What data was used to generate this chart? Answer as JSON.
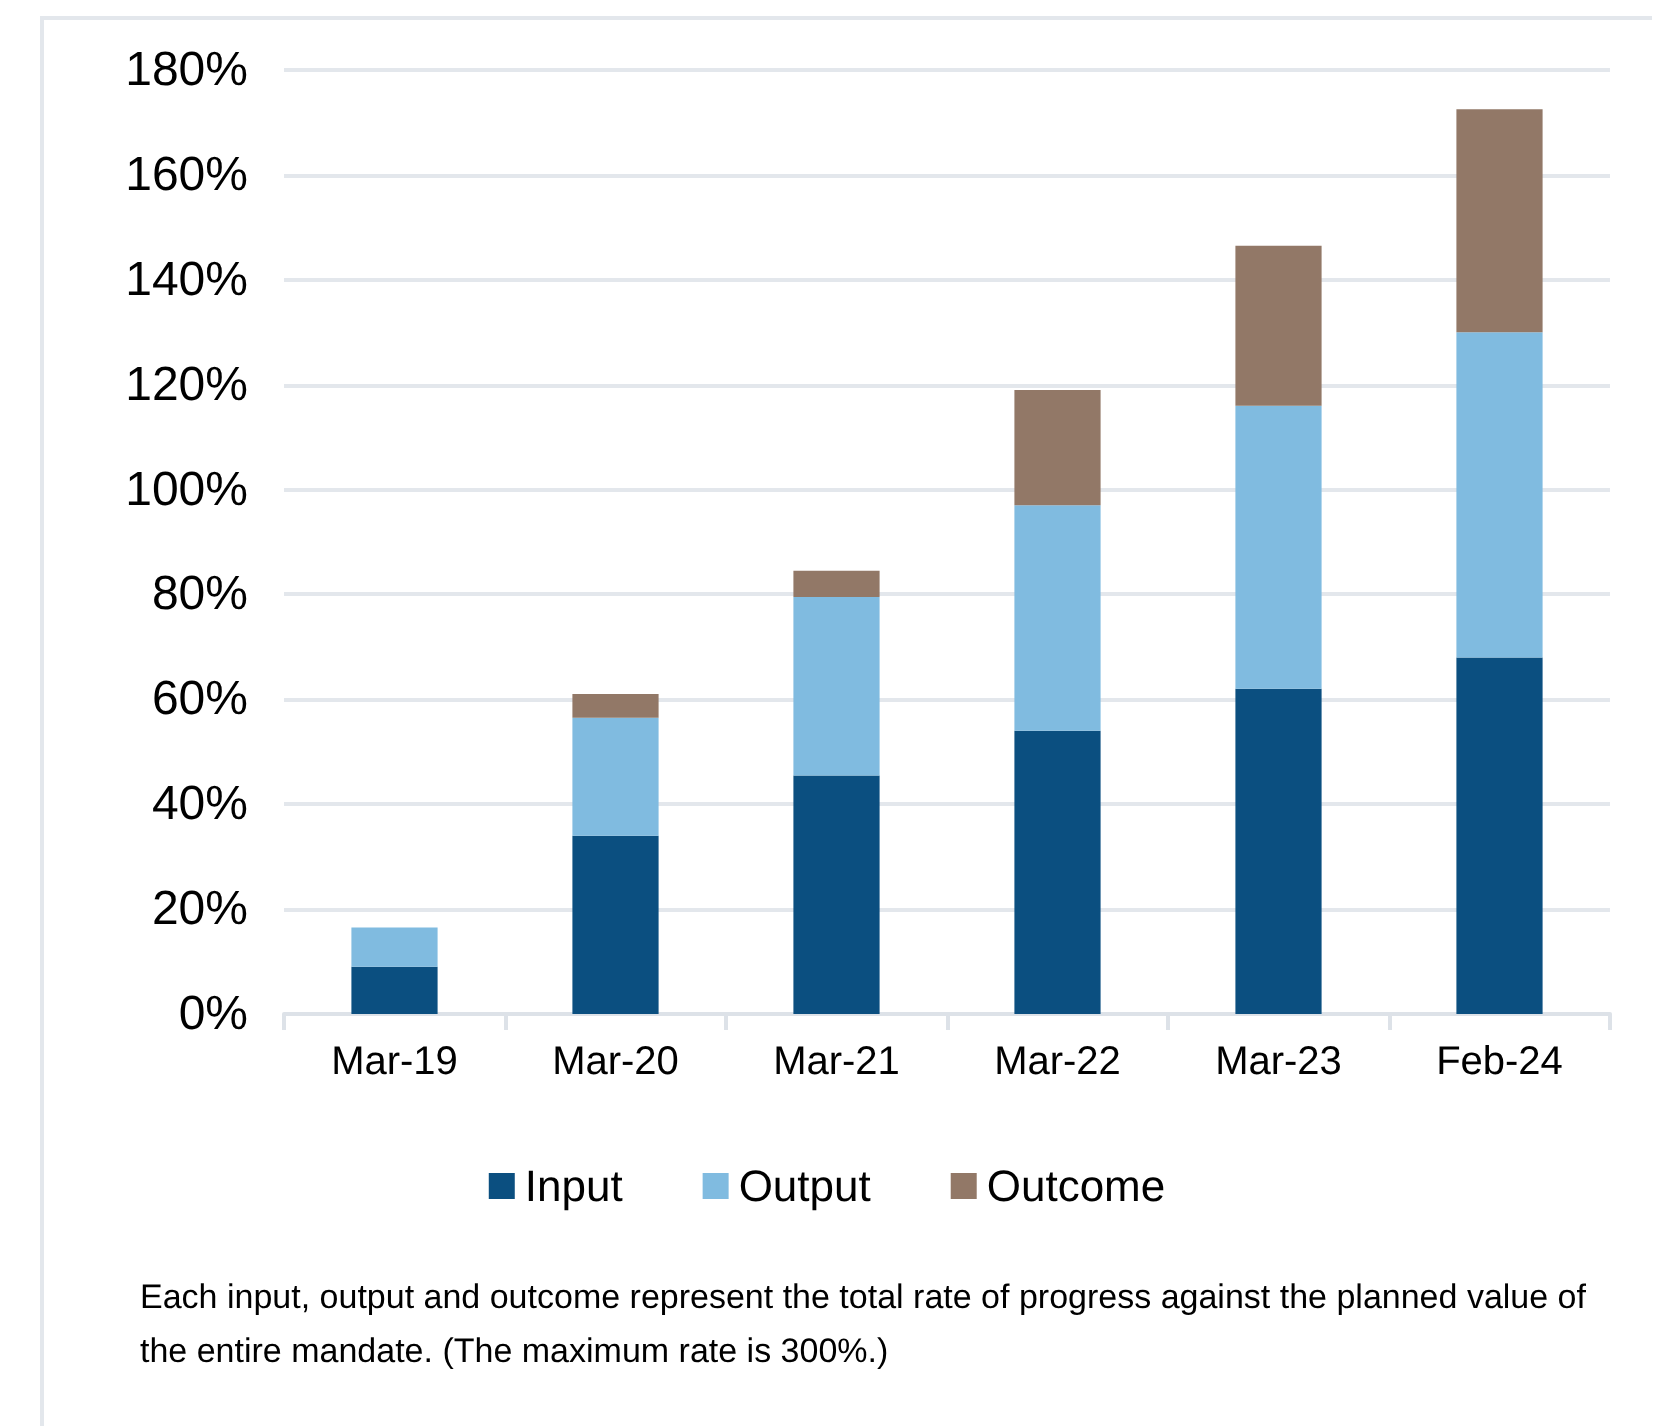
{
  "chart_data": {
    "type": "bar",
    "stacked": true,
    "categories": [
      "Mar-19",
      "Mar-20",
      "Mar-21",
      "Mar-22",
      "Mar-23",
      "Feb-24"
    ],
    "series": [
      {
        "name": "Input",
        "color": "#0b4f80",
        "values": [
          9,
          34,
          45.5,
          54,
          62,
          68
        ]
      },
      {
        "name": "Output",
        "color": "#80bbe0",
        "values": [
          7.5,
          22.5,
          34,
          43,
          54,
          62
        ]
      },
      {
        "name": "Outcome",
        "color": "#927867",
        "values": [
          0,
          4.5,
          5,
          22,
          30.5,
          42.5
        ]
      }
    ],
    "ylim": [
      0,
      180
    ],
    "yticks": [
      {
        "value": 0,
        "label": "0%"
      },
      {
        "value": 20,
        "label": "20%"
      },
      {
        "value": 40,
        "label": "40%"
      },
      {
        "value": 60,
        "label": "60%"
      },
      {
        "value": 80,
        "label": "80%"
      },
      {
        "value": 100,
        "label": "100%"
      },
      {
        "value": 120,
        "label": "120%"
      },
      {
        "value": 140,
        "label": "140%"
      },
      {
        "value": 160,
        "label": "160%"
      },
      {
        "value": 180,
        "label": "180%"
      }
    ],
    "grid": "y",
    "legend": "bottom",
    "annotations": [
      "Each input, output and outcome represent the total rate of progress against the planned value of the entire mandate. (The maximum rate is 300%.)"
    ]
  }
}
